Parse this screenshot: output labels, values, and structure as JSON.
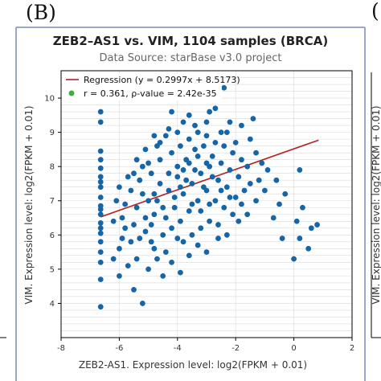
{
  "panel_label": "(B)",
  "right_panel_partial_label": "(",
  "colors": {
    "point": "#1565a7",
    "regression": "#b22222",
    "legend_dot": "#3cb043",
    "grid": "#d9d9d9",
    "frame": "#000000",
    "panel_border": "#9aa7c7"
  },
  "chart_data": {
    "type": "scatter",
    "title": "ZEB2–AS1 vs. VIM, 1104 samples (BRCA)",
    "subtitle": "Data Source: starBase v3.0 project",
    "xlabel": "ZEB2-AS1. Expression level: log2(FPKM + 0.01)",
    "ylabel": "VIM. Expression level: log2(FPKM + 0.01)",
    "xlim": [
      -8,
      2
    ],
    "ylim": [
      3,
      10.8
    ],
    "x_ticks": [
      -8,
      -6,
      -4,
      -2,
      0,
      2
    ],
    "y_ticks": [
      4,
      5,
      6,
      7,
      8,
      9,
      10
    ],
    "grid": true,
    "legend_position": "top-left",
    "legend": [
      "Regression (y = 0.2997x + 8.5173)",
      "r = 0.361, ρ-value = 2.42e-35"
    ],
    "regression": {
      "slope": 0.2997,
      "intercept": 8.5173,
      "x_range": [
        -6.64,
        0.85
      ]
    },
    "series": [
      {
        "points": [
          [
            -6.64,
            9.6
          ],
          [
            -6.64,
            9.3
          ],
          [
            -6.64,
            8.45
          ],
          [
            -6.64,
            8.2
          ],
          [
            -6.64,
            7.95
          ],
          [
            -6.64,
            7.7
          ],
          [
            -6.64,
            7.4
          ],
          [
            -6.64,
            7.1
          ],
          [
            -6.64,
            6.85
          ],
          [
            -6.64,
            6.6
          ],
          [
            -6.64,
            6.35
          ],
          [
            -6.64,
            6.05
          ],
          [
            -6.64,
            5.8
          ],
          [
            -6.64,
            5.5
          ],
          [
            -6.64,
            5.2
          ],
          [
            -6.64,
            4.7
          ],
          [
            -6.64,
            3.9
          ],
          [
            -6.64,
            7.55
          ],
          [
            -6.64,
            6.75
          ],
          [
            -6.64,
            6.2
          ],
          [
            -5.5,
            7.8
          ],
          [
            -5.2,
            8.0
          ],
          [
            -5.0,
            8.1
          ],
          [
            -4.6,
            8.7
          ],
          [
            -4.3,
            9.1
          ],
          [
            -4.8,
            8.9
          ],
          [
            -3.6,
            9.5
          ],
          [
            -3.0,
            9.3
          ],
          [
            -2.7,
            9.7
          ],
          [
            -2.2,
            9.3
          ],
          [
            -2.4,
            10.3
          ],
          [
            -1.8,
            9.2
          ],
          [
            -1.5,
            8.8
          ],
          [
            -1.4,
            9.4
          ],
          [
            -1.3,
            8.4
          ],
          [
            -1.1,
            8.1
          ],
          [
            -0.9,
            7.9
          ],
          [
            -0.6,
            7.6
          ],
          [
            -0.3,
            7.2
          ],
          [
            -0.5,
            6.9
          ],
          [
            0.2,
            7.9
          ],
          [
            0.3,
            6.8
          ],
          [
            0.1,
            6.4
          ],
          [
            0.5,
            5.6
          ],
          [
            0.6,
            6.2
          ],
          [
            0.8,
            6.3
          ],
          [
            0.2,
            5.9
          ],
          [
            0.0,
            5.3
          ],
          [
            -0.7,
            6.5
          ],
          [
            -0.4,
            5.9
          ],
          [
            -5.7,
            5.1
          ],
          [
            -5.5,
            4.4
          ],
          [
            -5.2,
            4.0
          ],
          [
            -5.0,
            5.0
          ],
          [
            -4.8,
            5.6
          ],
          [
            -4.5,
            4.8
          ],
          [
            -4.2,
            5.2
          ],
          [
            -3.9,
            4.9
          ],
          [
            -3.6,
            5.4
          ],
          [
            -3.3,
            5.7
          ],
          [
            -3.0,
            5.5
          ],
          [
            -2.6,
            5.9
          ],
          [
            -2.3,
            6.0
          ],
          [
            -5.9,
            6.5
          ],
          [
            -5.8,
            6.9
          ],
          [
            -6.1,
            7.0
          ],
          [
            -5.6,
            7.3
          ],
          [
            -6.0,
            5.6
          ],
          [
            -5.3,
            5.9
          ],
          [
            -5.1,
            6.1
          ],
          [
            -4.9,
            6.3
          ],
          [
            -4.7,
            7.0
          ],
          [
            -4.4,
            6.5
          ],
          [
            -4.1,
            6.8
          ],
          [
            -3.8,
            7.2
          ],
          [
            -3.5,
            7.5
          ],
          [
            -3.2,
            7.8
          ],
          [
            -2.9,
            8.0
          ],
          [
            -2.6,
            7.6
          ],
          [
            -2.3,
            7.4
          ],
          [
            -2.0,
            7.1
          ],
          [
            -1.8,
            6.9
          ],
          [
            -4.6,
            7.5
          ],
          [
            -4.3,
            7.8
          ],
          [
            -4.0,
            8.0
          ],
          [
            -3.7,
            8.2
          ],
          [
            -3.4,
            8.5
          ],
          [
            -3.1,
            8.6
          ],
          [
            -2.8,
            8.3
          ],
          [
            -2.5,
            8.1
          ],
          [
            -2.2,
            7.9
          ],
          [
            -1.9,
            7.7
          ],
          [
            -1.7,
            7.3
          ],
          [
            -1.6,
            6.6
          ],
          [
            -1.9,
            6.4
          ],
          [
            -2.1,
            6.6
          ],
          [
            -2.4,
            6.8
          ],
          [
            -2.7,
            7.0
          ],
          [
            -3.0,
            7.3
          ],
          [
            -3.3,
            7.0
          ],
          [
            -3.6,
            6.7
          ],
          [
            -3.9,
            6.4
          ],
          [
            -4.2,
            6.2
          ],
          [
            -4.5,
            6.0
          ],
          [
            -4.8,
            6.6
          ],
          [
            -5.0,
            7.0
          ],
          [
            -5.2,
            7.2
          ],
          [
            -5.4,
            6.8
          ],
          [
            -5.3,
            7.6
          ],
          [
            -4.9,
            7.8
          ],
          [
            -4.6,
            8.2
          ],
          [
            -4.2,
            8.4
          ],
          [
            -3.9,
            8.6
          ],
          [
            -3.6,
            8.8
          ],
          [
            -3.3,
            9.0
          ],
          [
            -3.0,
            8.9
          ],
          [
            -2.7,
            8.7
          ],
          [
            -2.4,
            8.6
          ],
          [
            -2.1,
            8.4
          ],
          [
            -1.8,
            8.2
          ],
          [
            -2.0,
            8.7
          ],
          [
            -2.3,
            9.0
          ],
          [
            -3.8,
            5.8
          ],
          [
            -3.5,
            6.0
          ],
          [
            -3.2,
            6.2
          ],
          [
            -2.9,
            6.4
          ],
          [
            -2.6,
            6.3
          ],
          [
            -4.0,
            5.9
          ],
          [
            -4.4,
            5.5
          ],
          [
            -4.7,
            5.3
          ],
          [
            -5.4,
            5.3
          ],
          [
            -5.6,
            5.8
          ],
          [
            -5.8,
            6.2
          ],
          [
            -6.2,
            6.4
          ],
          [
            -6.0,
            7.4
          ],
          [
            -5.7,
            7.7
          ],
          [
            -5.4,
            8.2
          ],
          [
            -5.1,
            8.5
          ],
          [
            -4.7,
            8.6
          ],
          [
            -4.4,
            8.9
          ],
          [
            -3.7,
            7.6
          ],
          [
            -3.4,
            7.9
          ],
          [
            -3.1,
            7.4
          ],
          [
            -2.8,
            7.7
          ],
          [
            -3.9,
            7.4
          ],
          [
            -4.1,
            7.1
          ],
          [
            -4.3,
            7.3
          ],
          [
            -3.5,
            6.9
          ],
          [
            -3.2,
            6.7
          ],
          [
            -2.9,
            6.9
          ],
          [
            -4.5,
            6.8
          ],
          [
            -4.8,
            7.2
          ],
          [
            -3.0,
            8.1
          ],
          [
            -3.3,
            8.3
          ],
          [
            -3.6,
            8.1
          ],
          [
            -3.8,
            7.9
          ],
          [
            -4.0,
            7.7
          ],
          [
            -2.5,
            7.3
          ],
          [
            -2.2,
            7.1
          ],
          [
            -1.5,
            7.5
          ],
          [
            -1.3,
            7.0
          ],
          [
            -1.2,
            7.6
          ],
          [
            -1.0,
            7.3
          ],
          [
            -1.6,
            8.0
          ],
          [
            -4.9,
            5.8
          ],
          [
            -5.1,
            6.5
          ],
          [
            -5.5,
            6.3
          ],
          [
            -5.9,
            5.9
          ],
          [
            -6.2,
            5.3
          ],
          [
            -6.0,
            4.8
          ],
          [
            -3.4,
            9.2
          ],
          [
            -2.9,
            9.6
          ],
          [
            -2.5,
            9.0
          ],
          [
            -4.0,
            9.0
          ],
          [
            -3.8,
            9.3
          ],
          [
            -4.2,
            9.6
          ]
        ]
      }
    ]
  }
}
